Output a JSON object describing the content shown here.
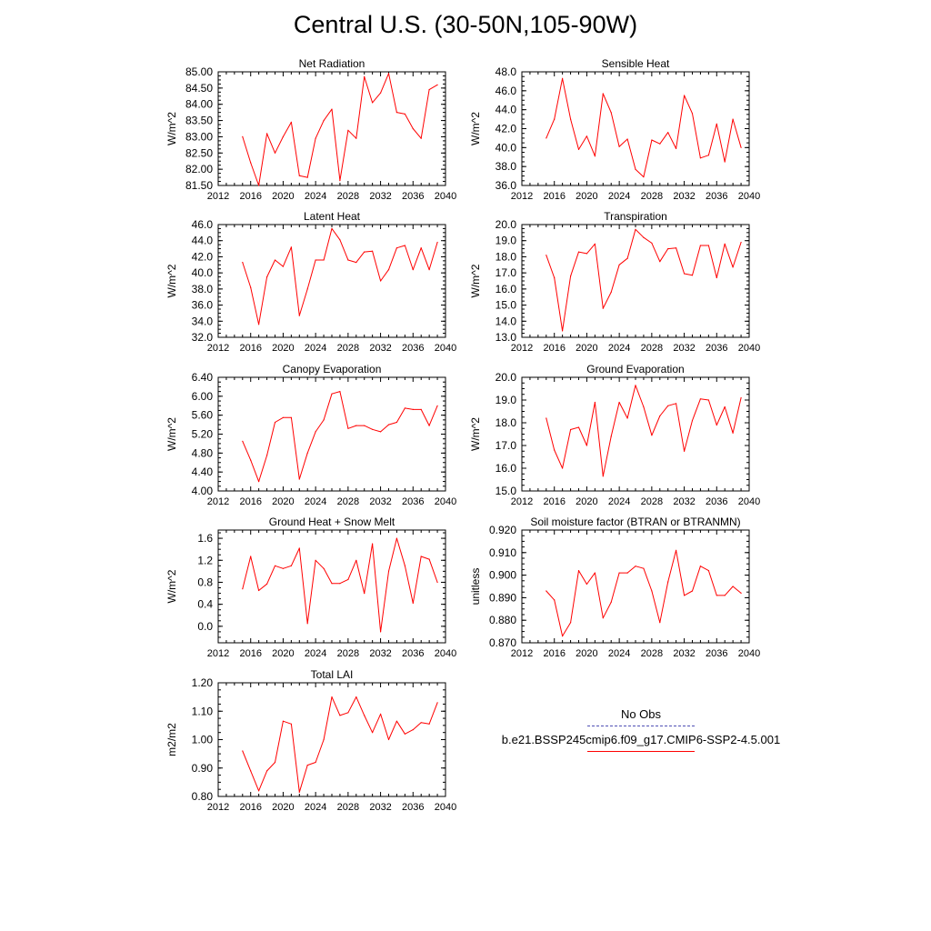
{
  "title": "Central U.S. (30-50N,105-90W)",
  "colors": {
    "case": "#ff0000",
    "obs": "#5050b4"
  },
  "legend": {
    "obs_label": "No Obs",
    "case_label": "b.e21.BSSP245cmip6.f09_g17.CMIP6-SSP2-4.5.001"
  },
  "chart_data": [
    {
      "type": "line",
      "title": "Net Radiation",
      "ylabel": "W/m^2",
      "xlim": [
        2012,
        2040
      ],
      "ylim": [
        81.5,
        85.0
      ],
      "xticks": [
        "2012",
        "2016",
        "2020",
        "2024",
        "2028",
        "2032",
        "2036",
        "2040"
      ],
      "yticks": [
        "81.50",
        "82.00",
        "82.50",
        "83.00",
        "83.50",
        "84.00",
        "84.50",
        "85.00"
      ],
      "x": [
        2015,
        2016,
        2017,
        2018,
        2019,
        2020,
        2021,
        2022,
        2023,
        2024,
        2025,
        2026,
        2027,
        2028,
        2029,
        2030,
        2031,
        2032,
        2033,
        2034,
        2035,
        2036,
        2037,
        2038,
        2039
      ],
      "series": [
        {
          "values": [
            83.0,
            82.2,
            81.5,
            83.1,
            82.5,
            83.0,
            83.45,
            81.8,
            81.75,
            82.95,
            83.5,
            83.85,
            81.65,
            83.2,
            82.95,
            84.85,
            84.05,
            84.35,
            84.95,
            83.75,
            83.7,
            83.25,
            82.95,
            84.45,
            84.6
          ]
        }
      ]
    },
    {
      "type": "line",
      "title": "Sensible Heat",
      "ylabel": "W/m^2",
      "xlim": [
        2012,
        2040
      ],
      "ylim": [
        36.0,
        48.0
      ],
      "xticks": [
        "2012",
        "2016",
        "2020",
        "2024",
        "2028",
        "2032",
        "2036",
        "2040"
      ],
      "yticks": [
        "36.0",
        "38.0",
        "40.0",
        "42.0",
        "44.0",
        "46.0",
        "48.0"
      ],
      "x": [
        2015,
        2016,
        2017,
        2018,
        2019,
        2020,
        2021,
        2022,
        2023,
        2024,
        2025,
        2026,
        2027,
        2028,
        2029,
        2030,
        2031,
        2032,
        2033,
        2034,
        2035,
        2036,
        2037,
        2038,
        2039
      ],
      "series": [
        {
          "values": [
            41.0,
            43.0,
            47.3,
            43.0,
            39.8,
            41.2,
            39.1,
            45.7,
            43.7,
            40.1,
            40.9,
            37.7,
            36.9,
            40.8,
            40.4,
            41.6,
            39.9,
            45.5,
            43.6,
            38.9,
            39.2,
            42.5,
            38.5,
            43.0,
            40.0
          ]
        }
      ]
    },
    {
      "type": "line",
      "title": "Latent Heat",
      "ylabel": "W/m^2",
      "xlim": [
        2012,
        2040
      ],
      "ylim": [
        32.0,
        46.0
      ],
      "xticks": [
        "2012",
        "2016",
        "2020",
        "2024",
        "2028",
        "2032",
        "2036",
        "2040"
      ],
      "yticks": [
        "32.0",
        "34.0",
        "36.0",
        "38.0",
        "40.0",
        "42.0",
        "44.0",
        "46.0"
      ],
      "x": [
        2015,
        2016,
        2017,
        2018,
        2019,
        2020,
        2021,
        2022,
        2023,
        2024,
        2025,
        2026,
        2027,
        2028,
        2029,
        2030,
        2031,
        2032,
        2033,
        2034,
        2035,
        2036,
        2037,
        2038,
        2039
      ],
      "series": [
        {
          "values": [
            41.3,
            38.2,
            33.6,
            39.5,
            41.6,
            40.8,
            43.2,
            34.7,
            38.0,
            41.6,
            41.6,
            45.5,
            44.1,
            41.6,
            41.3,
            42.6,
            42.7,
            39.0,
            40.4,
            43.1,
            43.4,
            40.4,
            43.1,
            40.4,
            43.8
          ]
        }
      ]
    },
    {
      "type": "line",
      "title": "Transpiration",
      "ylabel": "W/m^2",
      "xlim": [
        2012,
        2040
      ],
      "ylim": [
        13.0,
        20.0
      ],
      "xticks": [
        "2012",
        "2016",
        "2020",
        "2024",
        "2028",
        "2032",
        "2036",
        "2040"
      ],
      "yticks": [
        "13.0",
        "14.0",
        "15.0",
        "16.0",
        "17.0",
        "18.0",
        "19.0",
        "20.0"
      ],
      "x": [
        2015,
        2016,
        2017,
        2018,
        2019,
        2020,
        2021,
        2022,
        2023,
        2024,
        2025,
        2026,
        2027,
        2028,
        2029,
        2030,
        2031,
        2032,
        2033,
        2034,
        2035,
        2036,
        2037,
        2038,
        2039
      ],
      "series": [
        {
          "values": [
            18.1,
            16.7,
            13.4,
            16.8,
            18.3,
            18.2,
            18.8,
            14.8,
            15.8,
            17.5,
            17.9,
            19.7,
            19.2,
            18.85,
            17.7,
            18.5,
            18.55,
            16.95,
            16.85,
            18.7,
            18.7,
            16.7,
            18.8,
            17.35,
            18.9
          ]
        }
      ]
    },
    {
      "type": "line",
      "title": "Canopy Evaporation",
      "ylabel": "W/m^2",
      "xlim": [
        2012,
        2040
      ],
      "ylim": [
        4.0,
        6.4
      ],
      "xticks": [
        "2012",
        "2016",
        "2020",
        "2024",
        "2028",
        "2032",
        "2036",
        "2040"
      ],
      "yticks": [
        "4.00",
        "4.40",
        "4.80",
        "5.20",
        "5.60",
        "6.00",
        "6.40"
      ],
      "x": [
        2015,
        2016,
        2017,
        2018,
        2019,
        2020,
        2021,
        2022,
        2023,
        2024,
        2025,
        2026,
        2027,
        2028,
        2029,
        2030,
        2031,
        2032,
        2033,
        2034,
        2035,
        2036,
        2037,
        2038,
        2039
      ],
      "series": [
        {
          "values": [
            5.05,
            4.65,
            4.2,
            4.75,
            5.45,
            5.55,
            5.55,
            4.25,
            4.8,
            5.25,
            5.5,
            6.05,
            6.1,
            5.32,
            5.38,
            5.38,
            5.3,
            5.25,
            5.4,
            5.45,
            5.75,
            5.72,
            5.72,
            5.38,
            5.8
          ]
        }
      ]
    },
    {
      "type": "line",
      "title": "Ground Evaporation",
      "ylabel": "W/m^2",
      "xlim": [
        2012,
        2040
      ],
      "ylim": [
        15.0,
        20.0
      ],
      "xticks": [
        "2012",
        "2016",
        "2020",
        "2024",
        "2028",
        "2032",
        "2036",
        "2040"
      ],
      "yticks": [
        "15.0",
        "16.0",
        "17.0",
        "18.0",
        "19.0",
        "20.0"
      ],
      "x": [
        2015,
        2016,
        2017,
        2018,
        2019,
        2020,
        2021,
        2022,
        2023,
        2024,
        2025,
        2026,
        2027,
        2028,
        2029,
        2030,
        2031,
        2032,
        2033,
        2034,
        2035,
        2036,
        2037,
        2038,
        2039
      ],
      "series": [
        {
          "values": [
            18.2,
            16.8,
            16.0,
            17.7,
            17.8,
            17.0,
            18.9,
            15.65,
            17.4,
            18.9,
            18.2,
            19.65,
            18.7,
            17.45,
            18.3,
            18.75,
            18.85,
            16.75,
            18.1,
            19.05,
            19.0,
            17.9,
            18.7,
            17.55,
            19.1
          ]
        }
      ]
    },
    {
      "type": "line",
      "title": "Ground Heat + Snow Melt",
      "ylabel": "W/m^2",
      "xlim": [
        2012,
        2040
      ],
      "ylim": [
        -0.3,
        1.75
      ],
      "xticks": [
        "2012",
        "2016",
        "2020",
        "2024",
        "2028",
        "2032",
        "2036",
        "2040"
      ],
      "yticks": [
        "0.0",
        "0.4",
        "0.8",
        "1.2",
        "1.6"
      ],
      "x": [
        2015,
        2016,
        2017,
        2018,
        2019,
        2020,
        2021,
        2022,
        2023,
        2024,
        2025,
        2026,
        2027,
        2028,
        2029,
        2030,
        2031,
        2032,
        2033,
        2034,
        2035,
        2036,
        2037,
        2038,
        2039
      ],
      "series": [
        {
          "values": [
            0.68,
            1.27,
            0.65,
            0.77,
            1.1,
            1.05,
            1.1,
            1.42,
            0.05,
            1.2,
            1.05,
            0.78,
            0.78,
            0.85,
            1.2,
            0.6,
            1.5,
            -0.1,
            1.0,
            1.6,
            1.1,
            0.42,
            1.27,
            1.22,
            0.8
          ]
        }
      ]
    },
    {
      "type": "line",
      "title": "Soil moisture factor (BTRAN or BTRANMN)",
      "ylabel": "unitless",
      "xlim": [
        2012,
        2040
      ],
      "ylim": [
        0.87,
        0.92
      ],
      "xticks": [
        "2012",
        "2016",
        "2020",
        "2024",
        "2028",
        "2032",
        "2036",
        "2040"
      ],
      "yticks": [
        "0.870",
        "0.880",
        "0.890",
        "0.900",
        "0.910",
        "0.920"
      ],
      "x": [
        2015,
        2016,
        2017,
        2018,
        2019,
        2020,
        2021,
        2022,
        2023,
        2024,
        2025,
        2026,
        2027,
        2028,
        2029,
        2030,
        2031,
        2032,
        2033,
        2034,
        2035,
        2036,
        2037,
        2038,
        2039
      ],
      "series": [
        {
          "values": [
            0.893,
            0.889,
            0.873,
            0.879,
            0.902,
            0.896,
            0.901,
            0.881,
            0.888,
            0.901,
            0.901,
            0.904,
            0.903,
            0.893,
            0.879,
            0.897,
            0.911,
            0.891,
            0.893,
            0.904,
            0.902,
            0.891,
            0.891,
            0.895,
            0.892
          ]
        }
      ]
    },
    {
      "type": "line",
      "title": "Total LAI",
      "ylabel": "m2/m2",
      "xlim": [
        2012,
        2040
      ],
      "ylim": [
        0.8,
        1.2
      ],
      "xticks": [
        "2012",
        "2016",
        "2020",
        "2024",
        "2028",
        "2032",
        "2036",
        "2040"
      ],
      "yticks": [
        "0.80",
        "0.90",
        "1.00",
        "1.10",
        "1.20"
      ],
      "x": [
        2015,
        2016,
        2017,
        2018,
        2019,
        2020,
        2021,
        2022,
        2023,
        2024,
        2025,
        2026,
        2027,
        2028,
        2029,
        2030,
        2031,
        2032,
        2033,
        2034,
        2035,
        2036,
        2037,
        2038,
        2039
      ],
      "series": [
        {
          "values": [
            0.96,
            0.89,
            0.82,
            0.89,
            0.92,
            1.065,
            1.055,
            0.815,
            0.91,
            0.92,
            1.0,
            1.15,
            1.085,
            1.095,
            1.15,
            1.085,
            1.025,
            1.09,
            1.0,
            1.065,
            1.02,
            1.035,
            1.06,
            1.055,
            1.13
          ]
        }
      ]
    }
  ]
}
